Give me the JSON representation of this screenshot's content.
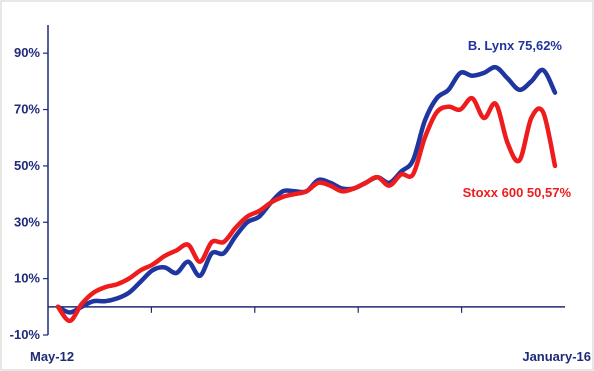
{
  "chart_data": {
    "type": "line",
    "title": "",
    "xlabel": "",
    "ylabel": "",
    "x_start_label": "May-12",
    "x_end_label": "January-16",
    "y_ticks": [
      "90%",
      "70%",
      "50%",
      "30%",
      "10%",
      "-10%"
    ],
    "ylim": [
      -10,
      100
    ],
    "grid": false,
    "colors": {
      "axis": "#1f2a78",
      "border": "#d0d0d0"
    },
    "series": [
      {
        "name": "B. Lynx",
        "label": "B. Lynx 75,62%",
        "color": "#1f35a0",
        "values": [
          0,
          -2,
          0,
          2,
          2,
          3,
          5,
          9,
          13,
          14,
          12,
          16,
          11,
          19,
          19,
          25,
          30,
          32,
          37,
          41,
          41,
          41,
          45,
          44,
          42,
          42,
          44,
          46,
          44,
          48,
          52,
          66,
          74,
          77,
          83,
          82,
          83,
          85,
          81,
          77,
          80,
          84,
          76
        ]
      },
      {
        "name": "Stoxx 600",
        "label": "Stoxx 600 50,57%",
        "color": "#ee1c1c",
        "values": [
          0,
          -5,
          1,
          5,
          7,
          8,
          10,
          13,
          15,
          18,
          20,
          22,
          16,
          23,
          23,
          28,
          32,
          34,
          37,
          39,
          40,
          41,
          44,
          43,
          41,
          42,
          44,
          46,
          43,
          47,
          47,
          60,
          69,
          71,
          70,
          74,
          67,
          72,
          58,
          52,
          67,
          69,
          50
        ]
      }
    ]
  }
}
